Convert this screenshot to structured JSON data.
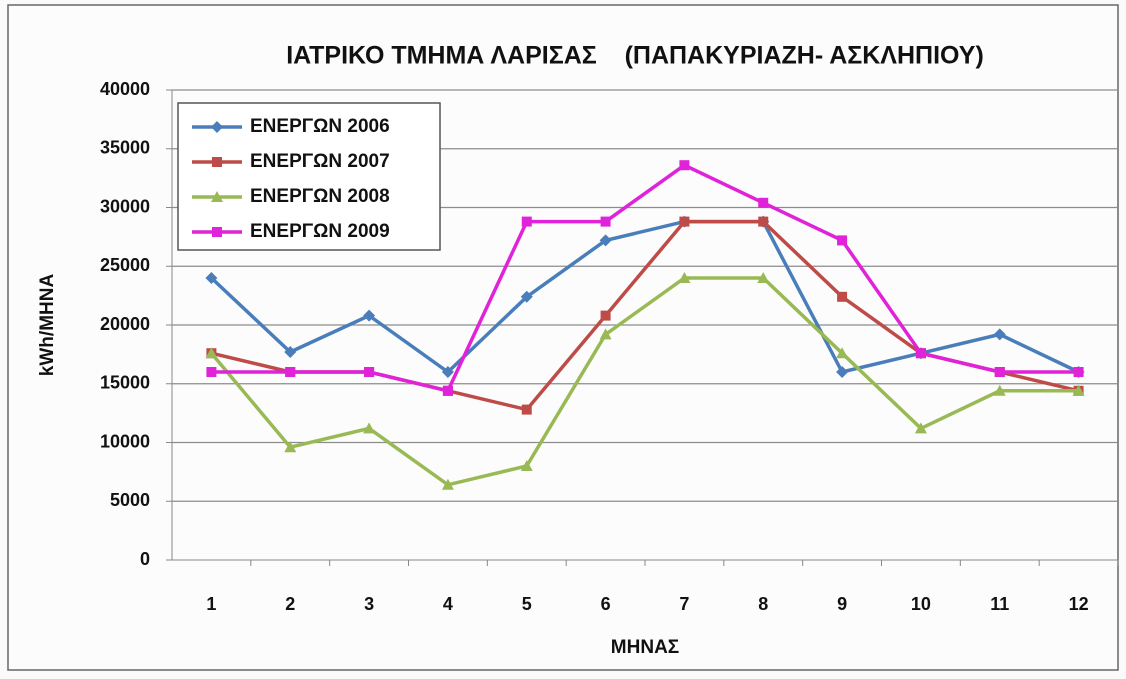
{
  "chart_data": {
    "type": "line",
    "title": "ΙΑΤΡΙΚΟ ΤΜΗΜΑ ΛΑΡΙΣΑΣ    (ΠΑΠΑΚΥΡΙΑΖΗ- ΑΣΚΛΗΠΙΟΥ)",
    "x_label": "ΜΗΝΑΣ",
    "y_label": "kWh/ΜΗΝΑ",
    "categories": [
      "1",
      "2",
      "3",
      "4",
      "5",
      "6",
      "7",
      "8",
      "9",
      "10",
      "11",
      "12"
    ],
    "series": [
      {
        "name": "ΕΝΕΡΓΩΝ 2006",
        "color": "#4a7ebb",
        "marker": "diamond",
        "values": [
          24000,
          17700,
          20800,
          16000,
          22400,
          27200,
          28800,
          28800,
          16000,
          17600,
          19200,
          16000
        ]
      },
      {
        "name": "ΕΝΕΡΓΩΝ 2007",
        "color": "#be4b48",
        "marker": "square",
        "values": [
          17600,
          16000,
          16000,
          14400,
          12800,
          20800,
          28800,
          28800,
          22400,
          17600,
          16000,
          14400
        ]
      },
      {
        "name": "ΕΝΕΡΓΩΝ 2008",
        "color": "#98b954",
        "marker": "triangle",
        "values": [
          17600,
          9600,
          11200,
          6400,
          8000,
          19200,
          24000,
          24000,
          17600,
          11200,
          14400,
          14400
        ]
      },
      {
        "name": "ΕΝΕΡΓΩΝ 2009",
        "color": "#e022d8",
        "marker": "square",
        "values": [
          16000,
          16000,
          16000,
          14400,
          28800,
          28800,
          33600,
          30400,
          27200,
          17600,
          16000,
          16000
        ]
      }
    ],
    "ylim": [
      0,
      40000
    ],
    "yticks": [
      0,
      5000,
      10000,
      15000,
      20000,
      25000,
      30000,
      35000,
      40000
    ],
    "grid": true,
    "legend": "upper left"
  }
}
